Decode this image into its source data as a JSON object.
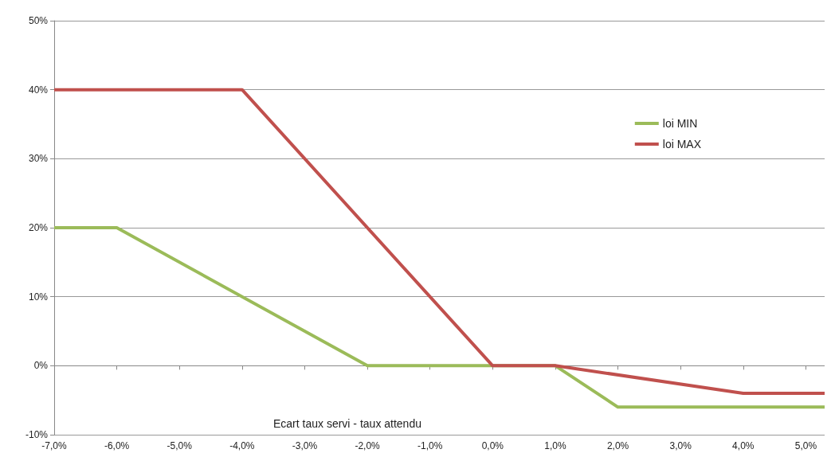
{
  "chart_data": {
    "type": "line",
    "xlabel": "Ecart taux servi - taux attendu",
    "series": [
      {
        "name": "loi MIN",
        "color": "#9bbb59",
        "x": [
          -7,
          -6,
          -2,
          1,
          2,
          5.3
        ],
        "values": [
          20,
          20,
          0,
          0,
          -6,
          -6
        ]
      },
      {
        "name": "loi MAX",
        "color": "#c0504d",
        "x": [
          -7,
          -4,
          0,
          1,
          4,
          5.3
        ],
        "values": [
          40,
          40,
          0,
          0,
          -4,
          -4
        ]
      }
    ],
    "xlim": [
      -7,
      5.3
    ],
    "xticks": [
      {
        "value": -7,
        "label": "-7,0%"
      },
      {
        "value": -6,
        "label": "-6,0%"
      },
      {
        "value": -5,
        "label": "-5,0%"
      },
      {
        "value": -4,
        "label": "-4,0%"
      },
      {
        "value": -3,
        "label": "-3,0%"
      },
      {
        "value": -2,
        "label": "-2,0%"
      },
      {
        "value": -1,
        "label": "-1,0%"
      },
      {
        "value": 0,
        "label": "0,0%"
      },
      {
        "value": 1,
        "label": "1,0%"
      },
      {
        "value": 2,
        "label": "2,0%"
      },
      {
        "value": 3,
        "label": "3,0%"
      },
      {
        "value": 4,
        "label": "4,0%"
      },
      {
        "value": 5,
        "label": "5,0%"
      }
    ],
    "ylim": [
      -10,
      50
    ],
    "yticks": [
      {
        "value": -10,
        "label": "-10%"
      },
      {
        "value": 0,
        "label": "0%"
      },
      {
        "value": 10,
        "label": "10%"
      },
      {
        "value": 20,
        "label": "20%"
      },
      {
        "value": 30,
        "label": "30%"
      },
      {
        "value": 40,
        "label": "40%"
      },
      {
        "value": 50,
        "label": "50%"
      }
    ],
    "grid": "y",
    "legend": "top right",
    "marker": "none",
    "line_style": "solid"
  }
}
